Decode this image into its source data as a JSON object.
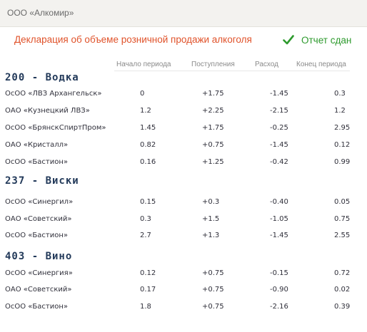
{
  "header": {
    "company": "ООО «Алкомир»"
  },
  "title": "Декларация об объеме розничной продажи алкоголя",
  "status": {
    "label": "Отчет сдан",
    "icon": "checkmark-icon",
    "color": "#2d9a2d"
  },
  "colors": {
    "title": "#e0522a",
    "group": "#233a5a"
  },
  "columns": [
    "Начало периода",
    "Поступления",
    "Расход",
    "Конец периода"
  ],
  "groups": [
    {
      "label": "200 - Водка",
      "rows": [
        [
          "ОсОО «ЛВЗ Архангельск»",
          "0",
          "+1.75",
          "-1.45",
          "0.3"
        ],
        [
          "ОАО «Кузнецкий ЛВЗ»",
          "1.2",
          "+2.25",
          "-2.15",
          "1.2"
        ],
        [
          "ОсОО «БрянскСпиртПром»",
          "1.45",
          "+1.75",
          "-0.25",
          "2.95"
        ],
        [
          "ОАО «Кристалл»",
          "0.82",
          "+0.75",
          "-1.45",
          "0.12"
        ],
        [
          "ОсОО «Бастион»",
          "0.16",
          "+1.25",
          "-0.42",
          "0.99"
        ]
      ]
    },
    {
      "label": "237 - Виски",
      "rows": [
        [
          "ОсОО «Синергил»",
          "0.15",
          "+0.3",
          "-0.40",
          "0.05"
        ],
        [
          "ОАО «Советский»",
          "0.3",
          "+1.5",
          "-1.05",
          "0.75"
        ],
        [
          "ОсОО «Бастион»",
          "2.7",
          "+1.3",
          "-1.45",
          "2.55"
        ]
      ]
    },
    {
      "label": "403 - Вино",
      "rows": [
        [
          "ОсОО «Синергия»",
          "0.12",
          "+0.75",
          "-0.15",
          "0.72"
        ],
        [
          "ОАО «Советский»",
          "0.17",
          "+0.75",
          "-0.90",
          "0.02"
        ],
        [
          "ОсОО «Бастион»",
          "1.8",
          "+0.75",
          "-2.16",
          "0.39"
        ]
      ]
    }
  ]
}
